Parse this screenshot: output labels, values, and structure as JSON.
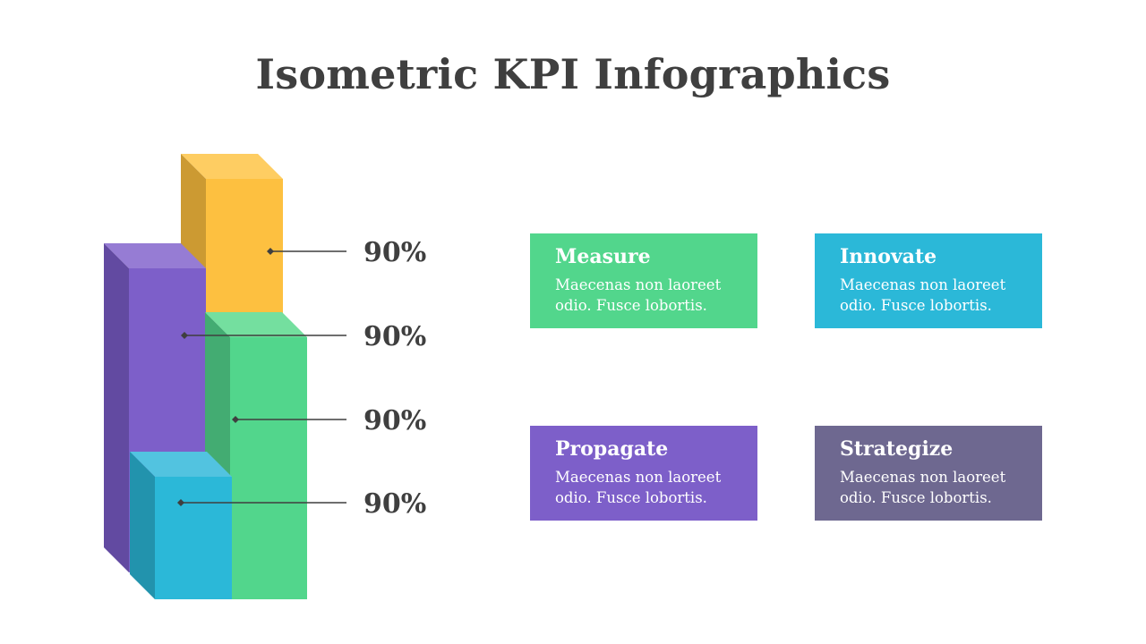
{
  "title": "Isometric KPI Infographics",
  "colors": {
    "measure": "#52d68c",
    "innovate": "#2bb8d8",
    "propagate": "#7d5fc9",
    "strategize": "#6e6890",
    "yellow_bar": "#fdc040",
    "purple_bar": "#7d5fc9",
    "green_bar": "#52d68c",
    "blue_bar": "#2bb8d8"
  },
  "kpis": [
    {
      "value": "90%"
    },
    {
      "value": "90%"
    },
    {
      "value": "90%"
    },
    {
      "value": "90%"
    }
  ],
  "cards": [
    {
      "title": "Measure",
      "text": "Maecenas non laoreet\nodio. Fusce lobortis."
    },
    {
      "title": "Innovate",
      "text": "Maecenas non laoreet\nodio. Fusce lobortis."
    },
    {
      "title": "Propagate",
      "text": "Maecenas non laoreet\nodio. Fusce lobortis."
    },
    {
      "title": "Strategize",
      "text": "Maecenas non laoreet\nodio. Fusce lobortis."
    }
  ]
}
